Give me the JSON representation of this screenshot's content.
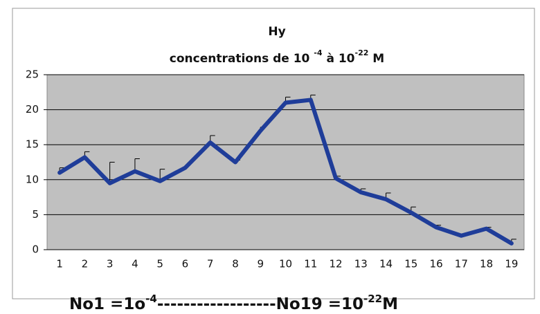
{
  "chart_data": {
    "type": "line",
    "title": "Hy",
    "subtitle": [
      "concentrations de 10 ",
      "-4",
      " à 10",
      "-22",
      " M"
    ],
    "annotation": [
      "No1 =1o",
      "-4",
      "------------------No19 =10",
      "-22",
      "M"
    ],
    "categories": [
      "1",
      "2",
      "3",
      "4",
      "5",
      "6",
      "7",
      "8",
      "9",
      "10",
      "11",
      "12",
      "13",
      "14",
      "15",
      "16",
      "17",
      "18",
      "19"
    ],
    "series": [
      {
        "color": "#1f3d99",
        "values": [
          11,
          13.2,
          9.5,
          11.2,
          9.8,
          11.7,
          15.3,
          12.5,
          17,
          21,
          21.4,
          10.2,
          8.2,
          7.2,
          5.3,
          3.2,
          2,
          3,
          0.9
        ],
        "errors": [
          0.7,
          0.8,
          3,
          1.8,
          1.7,
          0.3,
          1,
          0.3,
          0.5,
          0.8,
          0.7,
          0.3,
          0.5,
          0.9,
          0.8,
          0.3,
          0.2,
          0.2,
          0.6
        ]
      }
    ],
    "ylim": [
      0,
      25
    ],
    "yticks": [
      0,
      5,
      10,
      15,
      20,
      25
    ],
    "grid": true,
    "plot_background": "#c0c0c0"
  }
}
